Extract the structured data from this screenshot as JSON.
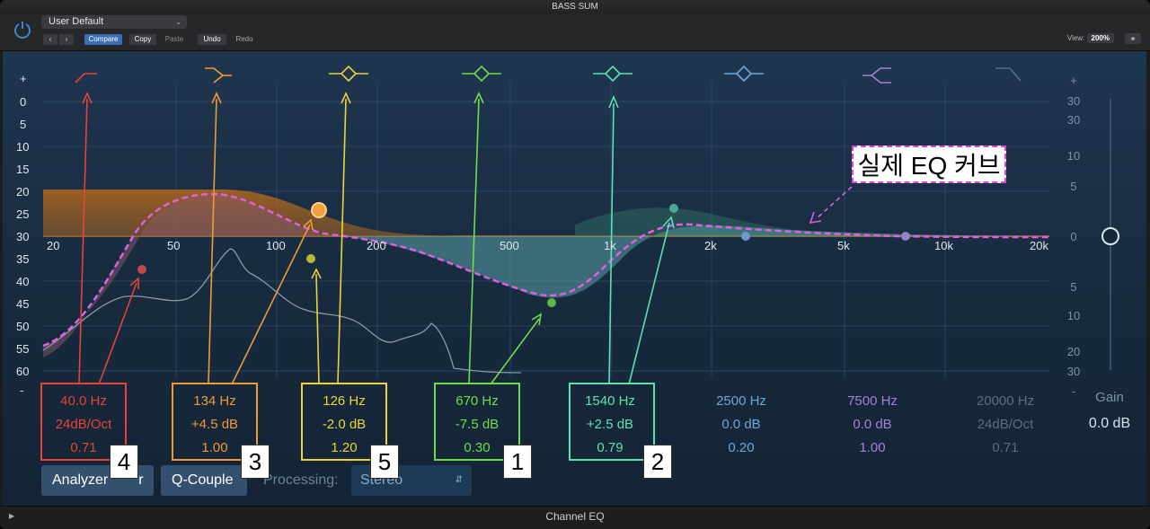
{
  "window": {
    "title": "BASS SUM",
    "footer_title": "Channel EQ"
  },
  "header": {
    "preset": "User Default",
    "compare": "Compare",
    "copy": "Copy",
    "paste": "Paste",
    "undo": "Undo",
    "redo": "Redo",
    "view_label": "View:",
    "view_value": "200%"
  },
  "scale_left": [
    "+",
    "0",
    "5",
    "10",
    "15",
    "20",
    "25",
    "30",
    "35",
    "40",
    "45",
    "50",
    "55",
    "60",
    "-"
  ],
  "scale_right": [
    "+",
    "30",
    "30",
    "10",
    "5",
    "0",
    "5",
    "10",
    "20",
    "30",
    "-"
  ],
  "freq_axis": [
    "20",
    "50",
    "100",
    "200",
    "500",
    "1k",
    "2k",
    "5k",
    "10k",
    "20k"
  ],
  "bands": [
    {
      "freq": "40.0 Hz",
      "gain": "24dB/Oct",
      "q": "0.71",
      "color": "#e8423a",
      "badge": "4"
    },
    {
      "freq": "134 Hz",
      "gain": "+4.5 dB",
      "q": "1.00",
      "color": "#f09a35",
      "badge": "3"
    },
    {
      "freq": "126 Hz",
      "gain": "-2.0 dB",
      "q": "1.20",
      "color": "#e9d43c",
      "badge": "5"
    },
    {
      "freq": "670 Hz",
      "gain": "-7.5 dB",
      "q": "0.30",
      "color": "#6fdc4a",
      "badge": "1"
    },
    {
      "freq": "1540 Hz",
      "gain": "+2.5 dB",
      "q": "0.79",
      "color": "#5fe0b0",
      "badge": "2"
    },
    {
      "freq": "2500 Hz",
      "gain": "0.0 dB",
      "q": "0.20",
      "color": "#6fa6d8",
      "badge": ""
    },
    {
      "freq": "7500 Hz",
      "gain": "0.0 dB",
      "q": "1.00",
      "color": "#a77fd8",
      "badge": ""
    },
    {
      "freq": "20000 Hz",
      "gain": "24dB/Oct",
      "q": "0.71",
      "color": "#5d6d7d",
      "badge": ""
    }
  ],
  "controls": {
    "analyzer": "Analyzer",
    "analyzer_suffix": "r",
    "q_couple": "Q-Couple",
    "processing_label": "Processing:",
    "processing_value": "Stereo",
    "gain_label": "Gain",
    "gain_value": "0.0 dB"
  },
  "annotation": "실제 EQ 커브"
}
